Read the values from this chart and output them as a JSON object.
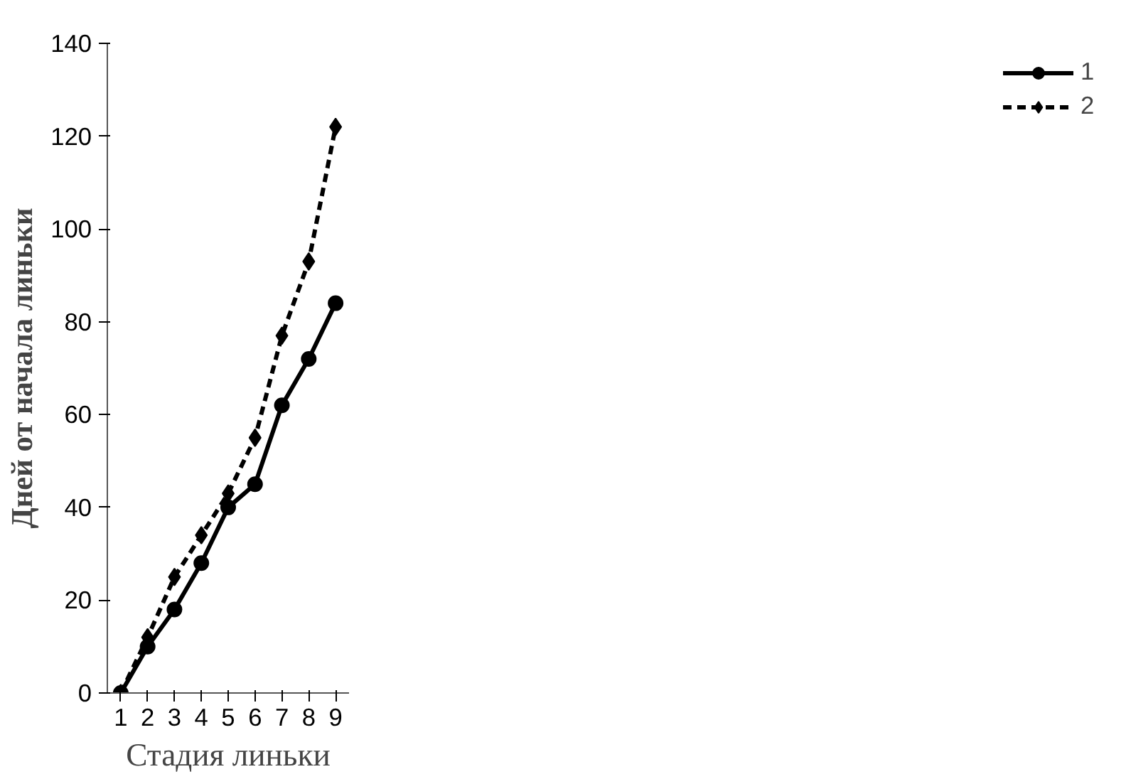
{
  "chart_data": {
    "type": "line",
    "xlabel": "Стадия линьки",
    "ylabel": "Дней от начала линьки",
    "categories": [
      "1",
      "2",
      "3",
      "4",
      "5",
      "6",
      "7",
      "8",
      "9"
    ],
    "series": [
      {
        "name": "1",
        "color": "#000000",
        "marker": "circle",
        "line_style": "solid",
        "values": [
          0,
          10,
          18,
          28,
          40,
          45,
          62,
          72,
          84
        ]
      },
      {
        "name": "2",
        "color": "#000000",
        "marker": "diamond",
        "line_style": "dashed",
        "values": [
          0,
          12,
          25,
          34,
          43,
          55,
          77,
          93,
          122
        ]
      }
    ],
    "ylim": [
      0,
      140
    ],
    "yticks": [
      0,
      20,
      40,
      60,
      80,
      100,
      120,
      140
    ],
    "grid": false,
    "legend": "right"
  }
}
